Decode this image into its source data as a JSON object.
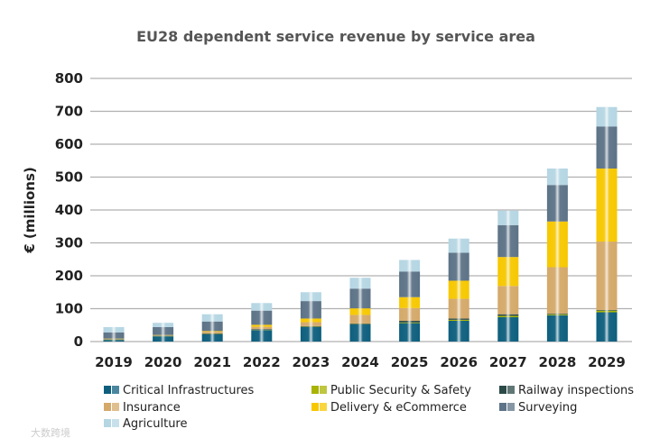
{
  "chart_data": {
    "type": "bar",
    "stacked": true,
    "title": "EU28 dependent service revenue by service area",
    "xlabel": "",
    "ylabel": "€ (millions)",
    "ylim": [
      0,
      800
    ],
    "yticks": [
      "0",
      "100",
      "200",
      "300",
      "400",
      "500",
      "600",
      "700",
      "800"
    ],
    "grid": true,
    "legend_position": "bottom",
    "categories": [
      "2019",
      "2020",
      "2021",
      "2022",
      "2023",
      "2024",
      "2025",
      "2026",
      "2027",
      "2028",
      "2029"
    ],
    "series": [
      {
        "name": "Critical Infrastructures",
        "color": "#0e5f7e",
        "values": [
          5,
          16,
          22,
          35,
          44,
          52,
          56,
          63,
          74,
          80,
          89
        ]
      },
      {
        "name": "Public Security & Safety",
        "color": "#a9b300",
        "values": [
          1,
          1,
          1,
          1,
          1,
          1,
          2,
          3,
          4,
          3,
          5
        ]
      },
      {
        "name": "Railway inspections",
        "color": "#2b4a47",
        "values": [
          1,
          1,
          2,
          2,
          2,
          2,
          5,
          4,
          5,
          2,
          2
        ]
      },
      {
        "name": "Insurance",
        "color": "#d4a96a",
        "values": [
          1,
          1,
          5,
          7,
          12,
          26,
          39,
          60,
          86,
          141,
          208
        ]
      },
      {
        "name": "Delivery & eCommerce",
        "color": "#f7c800",
        "values": [
          1,
          1,
          2,
          6,
          11,
          20,
          33,
          55,
          88,
          139,
          222
        ]
      },
      {
        "name": "Surveying",
        "color": "#5d7387",
        "values": [
          19,
          24,
          29,
          43,
          53,
          60,
          78,
          85,
          97,
          111,
          128
        ]
      },
      {
        "name": "Agriculture",
        "color": "#b5d6e3",
        "values": [
          16,
          13,
          22,
          23,
          27,
          33,
          35,
          43,
          44,
          50,
          59
        ]
      }
    ]
  },
  "watermark": "大数跨境"
}
